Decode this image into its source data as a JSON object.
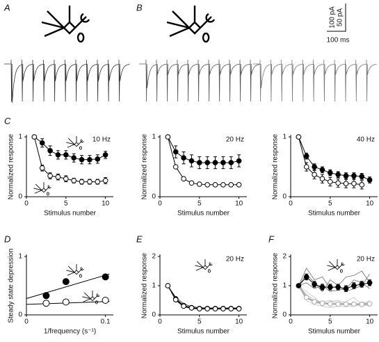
{
  "panel_labels": [
    "A",
    "B",
    "C",
    "D",
    "E",
    "F"
  ],
  "scale_bar": {
    "current_1": "100 pA",
    "current_2": "50 pA",
    "time": "100 ms"
  },
  "chart_data": [
    {
      "type": "line",
      "annotation": "10 Hz",
      "xlabel": "Stimulus number",
      "ylabel": "Normalized response",
      "xlim": [
        0,
        11
      ],
      "ylim": [
        0,
        1
      ],
      "xticks": [
        0,
        5,
        10
      ],
      "yticks": [
        0,
        1
      ],
      "x": [
        1,
        2,
        3,
        4,
        5,
        6,
        7,
        8,
        9,
        10
      ],
      "series": [
        {
          "marker": "filled",
          "color": "#000",
          "values": [
            1,
            0.9,
            0.77,
            0.7,
            0.7,
            0.65,
            0.62,
            0.62,
            0.63,
            0.7
          ],
          "errors": [
            0,
            0.07,
            0.08,
            0.07,
            0.07,
            0.07,
            0.07,
            0.07,
            0.07,
            0.06
          ]
        },
        {
          "marker": "open",
          "color": "#000",
          "values": [
            1,
            0.48,
            0.35,
            0.33,
            0.3,
            0.27,
            0.25,
            0.25,
            0.25,
            0.27
          ],
          "errors": [
            0,
            0.05,
            0.05,
            0.05,
            0.05,
            0.04,
            0.04,
            0.04,
            0.04,
            0.05
          ]
        }
      ]
    },
    {
      "type": "line",
      "annotation": "20 Hz",
      "xlabel": "Stimulus number",
      "ylabel": "Normalized response",
      "xlim": [
        0,
        11
      ],
      "ylim": [
        0,
        1
      ],
      "xticks": [
        0,
        5,
        10
      ],
      "yticks": [
        0,
        1
      ],
      "x": [
        1,
        2,
        3,
        4,
        5,
        6,
        7,
        8,
        9,
        10
      ],
      "series": [
        {
          "marker": "filled",
          "color": "#000",
          "values": [
            1,
            0.75,
            0.65,
            0.6,
            0.57,
            0.57,
            0.57,
            0.57,
            0.57,
            0.6
          ],
          "errors": [
            0,
            0.1,
            0.1,
            0.1,
            0.1,
            0.1,
            0.1,
            0.1,
            0.1,
            0.1
          ]
        },
        {
          "marker": "open",
          "color": "#000",
          "values": [
            1,
            0.5,
            0.3,
            0.23,
            0.21,
            0.2,
            0.2,
            0.2,
            0.2,
            0.2
          ],
          "errors": [
            0,
            0.02,
            0.02,
            0.02,
            0.02,
            0.02,
            0.02,
            0.02,
            0.02,
            0.02
          ]
        }
      ]
    },
    {
      "type": "line",
      "annotation": "40 Hz",
      "xlabel": "Stimulus number",
      "ylabel": "Normalized response",
      "xlim": [
        0,
        11
      ],
      "ylim": [
        0,
        1
      ],
      "xticks": [
        0,
        5,
        10
      ],
      "yticks": [
        0,
        1
      ],
      "x": [
        1,
        2,
        3,
        4,
        5,
        6,
        7,
        8,
        9,
        10
      ],
      "series": [
        {
          "marker": "filled",
          "color": "#000",
          "values": [
            1,
            0.68,
            0.5,
            0.45,
            0.4,
            0.37,
            0.35,
            0.35,
            0.34,
            0.28
          ],
          "errors": [
            0,
            0.05,
            0.05,
            0.05,
            0.05,
            0.05,
            0.05,
            0.05,
            0.05,
            0.05
          ]
        },
        {
          "marker": "open",
          "color": "#000",
          "values": [
            1,
            0.5,
            0.37,
            0.3,
            0.25,
            0.23,
            0.22,
            0.22,
            0.2,
            null
          ],
          "errors": [
            0,
            0.07,
            0.07,
            0.07,
            0.07,
            0.07,
            0.07,
            0.07,
            0.07,
            null
          ]
        }
      ]
    },
    {
      "type": "scatter",
      "xlabel": "1/frequency (s⁻¹)",
      "ylabel": "Steady state depression",
      "xlim": [
        0,
        0.11
      ],
      "ylim": [
        0,
        1
      ],
      "xticks": [
        0,
        0.1
      ],
      "yticks": [
        0,
        1
      ],
      "x": [
        0.025,
        0.05,
        0.1
      ],
      "series": [
        {
          "marker": "filled",
          "color": "#000",
          "values": [
            0.33,
            0.57,
            0.65
          ]
        },
        {
          "marker": "open",
          "color": "#000",
          "values": [
            0.2,
            0.22,
            0.25
          ]
        }
      ],
      "fit_lines": [
        {
          "x": [
            0,
            0.105
          ],
          "values": [
            0.28,
            0.7
          ]
        },
        {
          "x": [
            0,
            0.105
          ],
          "values": [
            0.18,
            0.23
          ]
        }
      ]
    },
    {
      "type": "line",
      "annotation": "20 Hz",
      "xlabel": "Stimulus number",
      "ylabel": "Normalized response",
      "xlim": [
        0,
        11
      ],
      "ylim": [
        0,
        2
      ],
      "xticks": [
        0,
        5,
        10
      ],
      "yticks": [
        0,
        1,
        2
      ],
      "x": [
        1,
        2,
        3,
        4,
        5,
        6,
        7,
        8,
        9,
        10
      ],
      "series": [
        {
          "marker": "none",
          "color": "#000",
          "values": [
            1,
            0.5,
            0.28,
            0.22,
            0.2,
            0.2,
            0.2,
            0.2,
            0.2,
            0.2
          ]
        },
        {
          "marker": "none",
          "color": "#000",
          "values": [
            1,
            0.6,
            0.38,
            0.28,
            0.25,
            0.24,
            0.24,
            0.24,
            0.24,
            0.24
          ]
        },
        {
          "marker": "filled",
          "color": "#000",
          "values": [
            1,
            0.55,
            0.32,
            0.25,
            0.22,
            0.22,
            0.22,
            0.22,
            0.22,
            0.22
          ]
        },
        {
          "marker": "open",
          "color": "#000",
          "values": [
            1,
            0.52,
            0.3,
            0.24,
            0.21,
            0.21,
            0.21,
            0.21,
            0.21,
            0.21
          ]
        }
      ]
    },
    {
      "type": "line",
      "annotation": "20 Hz",
      "xlabel": "Stimulus number",
      "ylabel": "Normalized response",
      "xlim": [
        0,
        11
      ],
      "ylim": [
        0,
        2
      ],
      "xticks": [
        0,
        5,
        10
      ],
      "yticks": [
        0,
        1,
        2
      ],
      "x": [
        1,
        2,
        3,
        4,
        5,
        6,
        7,
        8,
        9,
        10
      ],
      "series": [
        {
          "marker": "none",
          "color": "#555",
          "values": [
            1,
            1.6,
            1.2,
            1.3,
            0.9,
            1.0,
            1.3,
            1.35,
            1.5,
            1.1
          ]
        },
        {
          "marker": "none",
          "color": "#555",
          "values": [
            1,
            1.4,
            1.1,
            0.8,
            1.2,
            1.0,
            0.8,
            0.9,
            1.0,
            1.4
          ]
        },
        {
          "marker": "none",
          "color": "#555",
          "values": [
            1,
            1.1,
            0.9,
            1.0,
            0.8,
            0.85,
            0.9,
            1.2,
            1.1,
            0.9
          ]
        },
        {
          "marker": "none",
          "color": "#bbb",
          "values": [
            1,
            0.7,
            0.5,
            0.45,
            0.5,
            0.4,
            0.45,
            0.6,
            0.35,
            0.5
          ]
        },
        {
          "marker": "none",
          "color": "#bbb",
          "values": [
            1,
            0.5,
            0.35,
            0.3,
            0.25,
            0.3,
            0.28,
            0.3,
            0.35,
            0.3
          ]
        },
        {
          "marker": "none",
          "color": "#bbb",
          "values": [
            1,
            0.8,
            0.6,
            0.35,
            0.45,
            0.5,
            0.4,
            0.3,
            0.45,
            0.4
          ]
        },
        {
          "marker": "open",
          "color": "#aaa",
          "values": [
            1,
            0.6,
            0.45,
            0.4,
            0.38,
            0.37,
            0.37,
            0.37,
            0.36,
            0.38
          ],
          "errors": [
            0,
            0.05,
            0.05,
            0.05,
            0.05,
            0.05,
            0.05,
            0.05,
            0.05,
            0.05
          ]
        },
        {
          "marker": "filled",
          "color": "#000",
          "values": [
            1,
            1.3,
            1.05,
            0.95,
            0.95,
            0.95,
            0.9,
            1.0,
            1.05,
            1.1
          ],
          "errors": [
            0,
            0.1,
            0.1,
            0.1,
            0.1,
            0.1,
            0.1,
            0.1,
            0.1,
            0.1
          ]
        }
      ]
    }
  ]
}
